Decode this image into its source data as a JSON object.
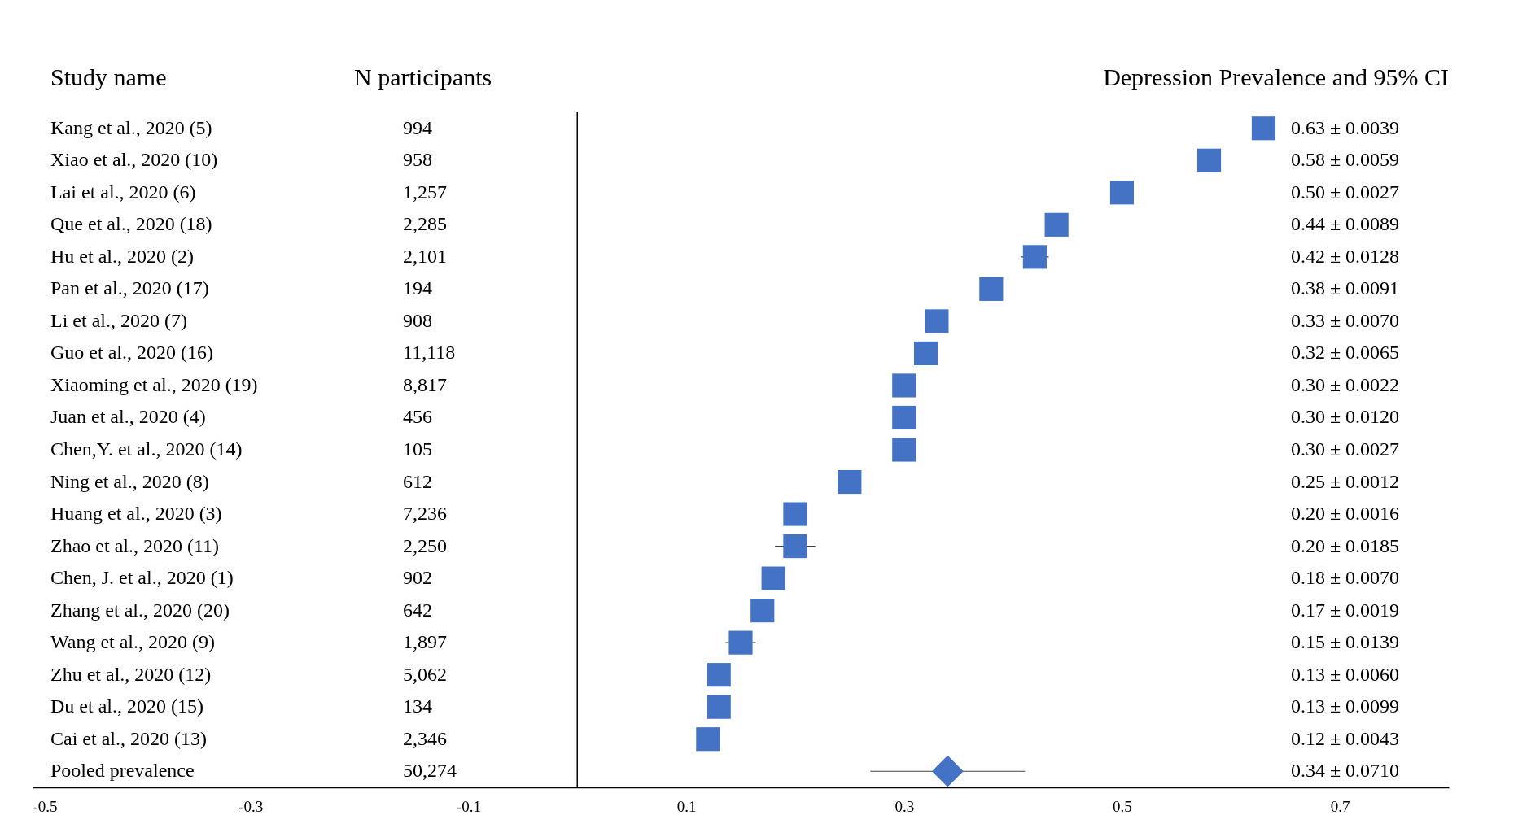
{
  "chart_data": {
    "type": "scatter",
    "title": "Depression Prevalence and 95% CI",
    "ylabel": "Study name",
    "annotations": [
      "N participants",
      "994",
      "958",
      "1,257",
      "2,285",
      "2,101",
      "194",
      "908",
      "11,118",
      "8,817",
      "456",
      "105",
      "612",
      "7,236",
      "2,250",
      "902",
      "642",
      "1,897",
      "5,062",
      "134",
      "2,346",
      "50,274",
      "0.63 ± 0.0039",
      "0.58 ± 0.0059",
      "0.50 ± 0.0027",
      "0.44 ± 0.0089",
      "0.42 ± 0.0128",
      "0.38 ± 0.0091",
      "0.33 ± 0.0070",
      "0.32 ± 0.0065",
      "0.30 ± 0.0022",
      "0.30 ± 0.0120",
      "0.30 ± 0.0027",
      "0.25 ± 0.0012",
      "0.20 ± 0.0016",
      "0.20 ± 0.0185",
      "0.18 ± 0.0070",
      "0.17 ± 0.0019",
      "0.15 ± 0.0139",
      "0.13 ± 0.0060",
      "0.13 ± 0.0099",
      "0.12 ± 0.0043",
      "0.34 ± 0.0710"
    ],
    "categories": [
      "Kang et al., 2020 (5)",
      "Xiao et al., 2020 (10)",
      "Lai et al., 2020 (6)",
      "Que et al., 2020 (18)",
      "Hu et al., 2020 (2)",
      "Pan et al., 2020 (17)",
      "Li et al., 2020 (7)",
      "Guo et al., 2020 (16)",
      "Xiaoming et al., 2020 (19)",
      "Juan et al., 2020 (4)",
      "Chen,Y. et al., 2020 (14)",
      "Ning et al., 2020 (8)",
      "Huang et al., 2020 (3)",
      "Zhao et al., 2020 (11)",
      "Chen, J. et al., 2020 (1)",
      "Zhang et al., 2020 (20)",
      "Wang et al., 2020 (9)",
      "Zhu et al., 2020 (12)",
      "Du et al., 2020 (15)",
      "Cai et al., 2020 (13)",
      "Pooled prevalence"
    ],
    "series": [
      {
        "color": "#4472c4",
        "marker": "square",
        "values": [
          0.63,
          0.58,
          0.5,
          0.44,
          0.42,
          0.38,
          0.33,
          0.32,
          0.3,
          0.3,
          0.3,
          0.25,
          0.2,
          0.2,
          0.18,
          0.17,
          0.15,
          0.13,
          0.13,
          0.12,
          null
        ],
        "errors": [
          null,
          null,
          null,
          null,
          0.0128,
          null,
          null,
          null,
          null,
          null,
          null,
          null,
          null,
          0.0185,
          null,
          null,
          0.0139,
          null,
          null,
          null,
          null
        ]
      },
      {
        "color": "#4472c4",
        "marker": "diamond",
        "values": [
          null,
          null,
          null,
          null,
          null,
          null,
          null,
          null,
          null,
          null,
          null,
          null,
          null,
          null,
          null,
          null,
          null,
          null,
          null,
          null,
          0.34
        ],
        "errors": [
          null,
          null,
          null,
          null,
          null,
          null,
          null,
          null,
          null,
          null,
          null,
          null,
          null,
          null,
          null,
          null,
          null,
          null,
          null,
          null,
          0.071
        ]
      }
    ],
    "orientation": "horizontal",
    "xlim": [
      -0.5,
      0.8
    ],
    "xticks": [
      -0.5,
      -0.3,
      -0.1,
      0.1,
      0.3,
      0.5,
      0.7
    ],
    "ref_lines": [
      {
        "axis": "x",
        "value": 0,
        "color": "#000000"
      }
    ],
    "grid": false
  }
}
